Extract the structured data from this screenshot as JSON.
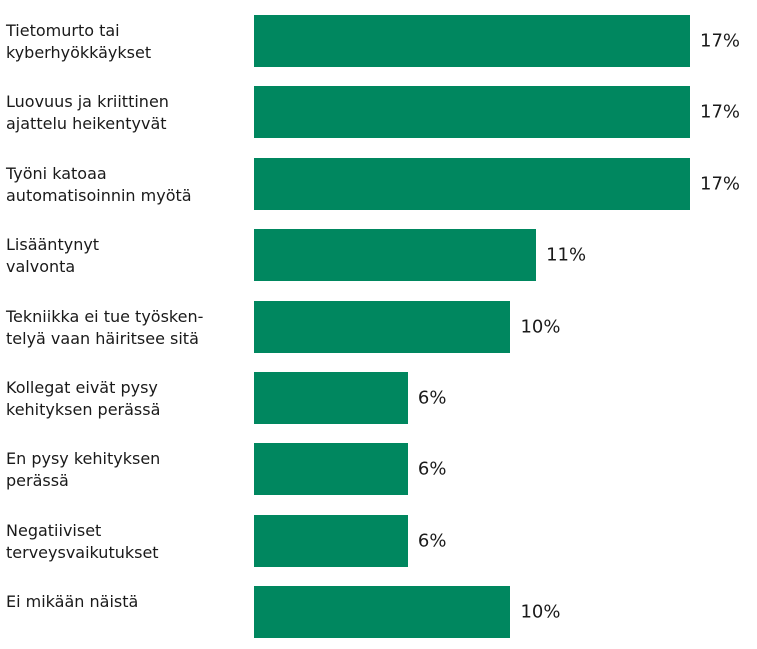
{
  "chart_data": {
    "type": "bar",
    "orientation": "horizontal",
    "color": "#00875f",
    "categories": [
      "Tietomurto tai\nkyberhyökkäykset",
      "Luovuus ja kriittinen\najattelu heikentyvät",
      "Työni katoaa\nautomatisoinnin myötä",
      "Lisääntynyt\nvalvonta",
      "Tekniikka ei tue työsken-\ntelyä vaan häiritsee sitä",
      "Kollegat eivät pysy\nkehityksen perässä",
      "En pysy kehityksen\nperässä",
      "Negatiiviset\nterveysvaikutukset",
      "Ei mikään näistä"
    ],
    "values": [
      17,
      17,
      17,
      11,
      10,
      6,
      6,
      6,
      10
    ],
    "value_labels": [
      "17%",
      "17%",
      "17%",
      "11%",
      "10%",
      "6%",
      "6%",
      "6%",
      "10%"
    ]
  }
}
